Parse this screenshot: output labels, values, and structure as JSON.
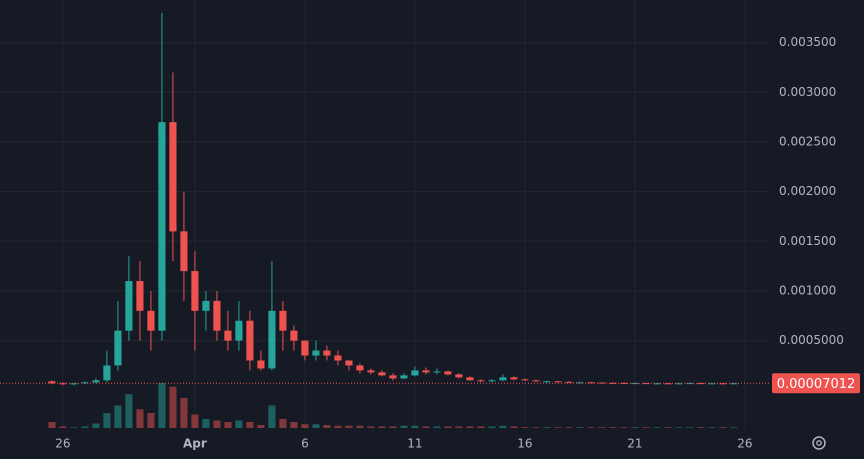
{
  "chart_data": {
    "type": "candlestick",
    "x": [
      25.5,
      26,
      26.5,
      27,
      27.5,
      28,
      28.5,
      29,
      29.5,
      30,
      30.5,
      31,
      31.5,
      32,
      32.5,
      33,
      33.5,
      34,
      34.5,
      35,
      35.5,
      36,
      36.5,
      37,
      37.5,
      38,
      38.5,
      39,
      39.5,
      40,
      40.5,
      41,
      41.5,
      42,
      42.5,
      43,
      43.5,
      44,
      44.5,
      45,
      45.5,
      46,
      46.5,
      47,
      47.5,
      48,
      48.5,
      49,
      49.5,
      50,
      50.5,
      51,
      51.5,
      52,
      52.5,
      53,
      53.5,
      54,
      54.5,
      55,
      55.5,
      56,
      56.5
    ],
    "open": [
      9e-05,
      7e-05,
      6e-05,
      7e-05,
      8e-05,
      0.0001,
      0.00025,
      0.0006,
      0.0011,
      0.0008,
      0.0006,
      0.0027,
      0.0016,
      0.0012,
      0.0008,
      0.0009,
      0.0006,
      0.0005,
      0.0007,
      0.0003,
      0.00022,
      0.0008,
      0.0006,
      0.0005,
      0.00035,
      0.0004,
      0.00035,
      0.0003,
      0.00025,
      0.0002,
      0.00018,
      0.00015,
      0.00012,
      0.00015,
      0.0002,
      0.00018,
      0.00019,
      0.00016,
      0.00013,
      0.0001,
      9e-05,
      0.0001,
      0.00013,
      0.00011,
      0.0001,
      9e-05,
      9e-05,
      8.5e-05,
      8e-05,
      8e-05,
      7.8e-05,
      7.5e-05,
      7.4e-05,
      7.2e-05,
      7.2e-05,
      7e-05,
      7e-05,
      6.8e-05,
      7e-05,
      7.2e-05,
      6.9e-05,
      7e-05,
      6.8e-05
    ],
    "high": [
      0.0001,
      8e-05,
      7e-05,
      9e-05,
      0.00012,
      0.0004,
      0.0009,
      0.00135,
      0.0013,
      0.001,
      0.0038,
      0.0032,
      0.002,
      0.0014,
      0.001,
      0.001,
      0.0008,
      0.0009,
      0.0008,
      0.0004,
      0.0013,
      0.0009,
      0.00065,
      0.0005,
      0.0005,
      0.00045,
      0.0004,
      0.0003,
      0.00027,
      0.00022,
      0.0002,
      0.00017,
      0.00017,
      0.00024,
      0.00023,
      0.00022,
      0.0002,
      0.00017,
      0.00014,
      0.00011,
      0.00011,
      0.00016,
      0.00014,
      0.00012,
      0.000105,
      9.5e-05,
      9.5e-05,
      9e-05,
      8.5e-05,
      8.5e-05,
      8e-05,
      8e-05,
      7.8e-05,
      7.6e-05,
      7.5e-05,
      7.4e-05,
      7.3e-05,
      7.6e-05,
      7.8e-05,
      7.5e-05,
      7.4e-05,
      7.3e-05,
      7.4e-05
    ],
    "low": [
      6e-05,
      5e-05,
      5e-05,
      6e-05,
      7e-05,
      8e-05,
      0.0002,
      0.0005,
      0.0005,
      0.0004,
      0.0005,
      0.0013,
      0.0009,
      0.0004,
      0.0006,
      0.0005,
      0.0004,
      0.0004,
      0.0002,
      0.0002,
      0.0002,
      0.0004,
      0.0004,
      0.0003,
      0.0003,
      0.0003,
      0.00025,
      0.0002,
      0.00017,
      0.00016,
      0.00014,
      0.0001,
      0.00011,
      0.00014,
      0.00016,
      0.00016,
      0.00015,
      0.00012,
      0.0001,
      8e-05,
      8e-05,
      9e-05,
      0.0001,
      9.5e-05,
      8.5e-05,
      8.5e-05,
      8e-05,
      7.5e-05,
      7.5e-05,
      7.3e-05,
      7e-05,
      7e-05,
      6.8e-05,
      6.8e-05,
      6.6e-05,
      6.6e-05,
      6.4e-05,
      6.5e-05,
      6.8e-05,
      6.6e-05,
      6.6e-05,
      6.5e-05,
      6.6e-05
    ],
    "close": [
      7e-05,
      6e-05,
      7e-05,
      8e-05,
      0.0001,
      0.00025,
      0.0006,
      0.0011,
      0.0008,
      0.0006,
      0.0027,
      0.0016,
      0.0012,
      0.0008,
      0.0009,
      0.0006,
      0.0005,
      0.0007,
      0.0003,
      0.00022,
      0.0008,
      0.0006,
      0.0005,
      0.00035,
      0.0004,
      0.00035,
      0.0003,
      0.00025,
      0.0002,
      0.00018,
      0.00015,
      0.00012,
      0.00015,
      0.0002,
      0.00018,
      0.00019,
      0.00016,
      0.00013,
      0.0001,
      9e-05,
      0.0001,
      0.00013,
      0.00011,
      0.0001,
      9e-05,
      9e-05,
      8.5e-05,
      8e-05,
      8e-05,
      7.8e-05,
      7.5e-05,
      7.4e-05,
      7.2e-05,
      7.2e-05,
      7e-05,
      7e-05,
      6.8e-05,
      7e-05,
      7.2e-05,
      6.9e-05,
      7e-05,
      6.8e-05,
      7.012e-05
    ],
    "volume": [
      8,
      2,
      1,
      2,
      6,
      20,
      30,
      45,
      25,
      20,
      60,
      55,
      40,
      18,
      12,
      10,
      8,
      10,
      8,
      4,
      30,
      12,
      8,
      5,
      5,
      4,
      3,
      3,
      3,
      2,
      2,
      2,
      3,
      3,
      2,
      2,
      2,
      2,
      2,
      2,
      2,
      3,
      2,
      1,
      1,
      1,
      1,
      1,
      1,
      1,
      1,
      1,
      1,
      1,
      1,
      1,
      1,
      1,
      1,
      1,
      1,
      1,
      1
    ],
    "up_color": "#26a69a",
    "down_color": "#ef5350",
    "xlim": [
      23.14,
      58.14
    ],
    "xticks": [
      26,
      {
        "value": 32,
        "label": "Apr"
      },
      {
        "value": 37,
        "label": "6"
      },
      {
        "value": 42,
        "label": "11"
      },
      {
        "value": 47,
        "label": "16"
      },
      {
        "value": 52,
        "label": "21"
      },
      {
        "value": 57,
        "label": "26"
      }
    ],
    "ylim": [
      -0.00038,
      0.00393
    ],
    "yticks": [
      {
        "value": 0.0005,
        "label": "0.0005000"
      },
      {
        "value": 0.001,
        "label": "0.001000"
      },
      {
        "value": 0.0015,
        "label": "0.001500"
      },
      {
        "value": 0.002,
        "label": "0.002000"
      },
      {
        "value": 0.0025,
        "label": "0.002500"
      },
      {
        "value": 0.003,
        "label": "0.003000"
      },
      {
        "value": 0.0035,
        "label": "0.003500"
      }
    ],
    "grid": true
  }
}
